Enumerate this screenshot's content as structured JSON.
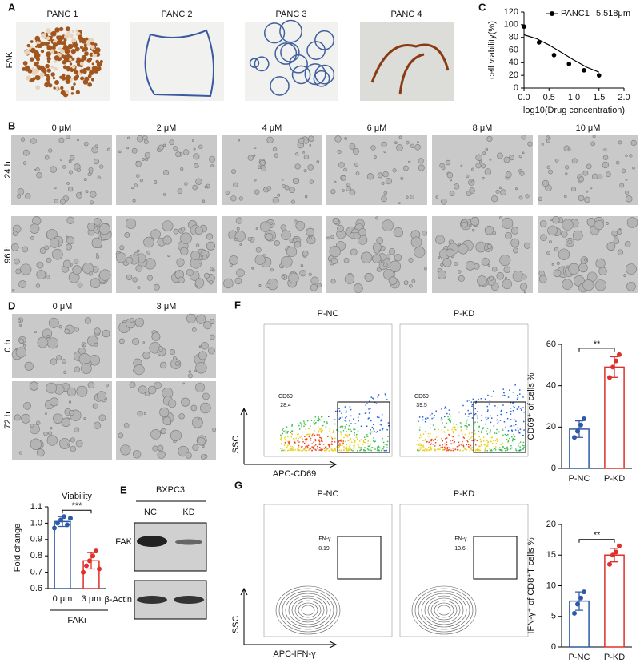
{
  "panels": {
    "A": {
      "letter": "A",
      "row_label": "FAK",
      "images": [
        "PANC 1",
        "PANC 2",
        "PANC 3",
        "PANC 4"
      ]
    },
    "B": {
      "letter": "B",
      "columns": [
        "0 μM",
        "2 μM",
        "4 μM",
        "6 μM",
        "8 μM",
        "10 μM"
      ],
      "rows": [
        "24 h",
        "96 h"
      ]
    },
    "C": {
      "letter": "C"
    },
    "D": {
      "letter": "D",
      "columns": [
        "0 μM",
        "3 μM"
      ],
      "rows": [
        "0 h",
        "72 h"
      ]
    },
    "E": {
      "letter": "E",
      "cell_line": "BXPC3",
      "lanes": [
        "NC",
        "KD"
      ],
      "proteins": [
        "FAK",
        "β-Actin"
      ]
    },
    "F": {
      "letter": "F",
      "samples": [
        "P-NC",
        "P-KD"
      ],
      "gate_label": "CD69",
      "gate_values": [
        "28.4",
        "39.5"
      ],
      "y_axis": "SSC",
      "x_axis": "APC-CD69"
    },
    "G": {
      "letter": "G",
      "samples": [
        "P-NC",
        "P-KD"
      ],
      "gate_label": "IFN-γ",
      "gate_values": [
        "8.19",
        "13.6"
      ],
      "y_axis": "SSC",
      "x_axis": "APC-IFN-γ"
    }
  },
  "chart_data": [
    {
      "type": "scatter",
      "xlabel": "log10(Drug concentration)",
      "ylabel": "cell viability(%)",
      "series": [
        {
          "name": "PANC1",
          "color": "#000000",
          "x": [
            0,
            0.3,
            0.6,
            0.9,
            1.2,
            1.5
          ],
          "values": [
            97,
            72,
            52,
            38,
            28,
            20
          ]
        }
      ],
      "annotation": "5.518μm",
      "legend": "upper right",
      "fit": {
        "x": [
          0,
          0.25,
          0.5,
          0.75,
          1.0,
          1.25,
          1.5
        ],
        "values": [
          84,
          78,
          68,
          56,
          44,
          33,
          25
        ]
      },
      "xlim": [
        0,
        2
      ],
      "xticks": [
        {
          "value": 0,
          "label": "0.0"
        },
        0.5,
        {
          "value": 1,
          "label": "1.0"
        },
        1.5,
        {
          "value": 2,
          "label": "2.0"
        }
      ],
      "ylim": [
        0,
        120
      ],
      "yticks": [
        0,
        20,
        40,
        60,
        80,
        100,
        120
      ]
    },
    {
      "type": "bar",
      "title": "Viability",
      "ylabel": "Fold change",
      "group_label": "FAKi",
      "significance": "***",
      "categories": [
        "0 μm",
        "3 μm"
      ],
      "values": [
        1.01,
        0.77
      ],
      "errors": [
        0.03,
        0.05
      ],
      "points": [
        [
          0.97,
          1.0,
          1.02,
          1.04,
          0.99,
          1.03
        ],
        [
          0.7,
          0.74,
          0.77,
          0.8,
          0.83,
          0.72
        ]
      ],
      "colors": [
        "#2f5aa8",
        "#e0302b"
      ],
      "ylim": [
        0.6,
        1.1
      ],
      "yticks": [
        0.6,
        0.7,
        0.8,
        0.9,
        {
          "value": 1,
          "label": "1.0"
        },
        1.1
      ]
    },
    {
      "type": "bar",
      "ylabel": "CD69⁺ of cells %",
      "significance": "**",
      "categories": [
        "P-NC",
        "P-KD"
      ],
      "values": [
        19,
        49
      ],
      "errors": [
        4,
        5
      ],
      "points": [
        [
          15,
          18,
          21,
          24
        ],
        [
          44,
          49,
          52,
          55
        ]
      ],
      "colors": [
        "#2f5aa8",
        "#e0302b"
      ],
      "ylim": [
        0,
        60
      ],
      "yticks": [
        0,
        20,
        40,
        60
      ]
    },
    {
      "type": "bar",
      "ylabel": "IFN-γ⁺ of CD8⁺T cells %",
      "significance": "**",
      "categories": [
        "P-NC",
        "P-KD"
      ],
      "values": [
        7.5,
        15
      ],
      "errors": [
        1.5,
        1.1
      ],
      "points": [
        [
          5.5,
          7,
          8,
          9
        ],
        [
          13.5,
          15,
          15.5,
          16.5
        ]
      ],
      "colors": [
        "#2f5aa8",
        "#e0302b"
      ],
      "ylim": [
        0,
        20
      ],
      "yticks": [
        0,
        5,
        10,
        15,
        20
      ]
    }
  ]
}
